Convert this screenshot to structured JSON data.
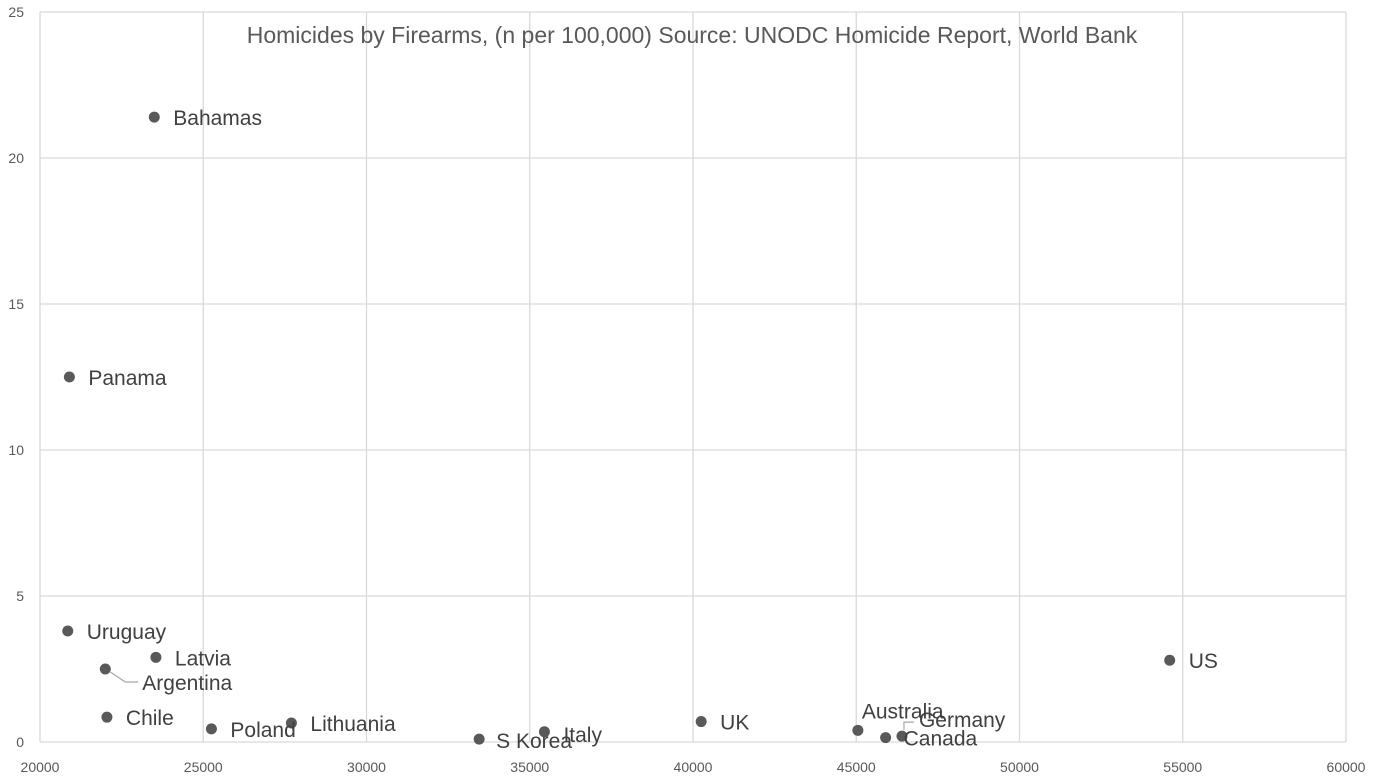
{
  "chart_data": {
    "type": "scatter",
    "title": "Homicides by Firearms, (n per 100,000) Source: UNODC Homicide Report, World Bank",
    "xlabel": "",
    "ylabel": "",
    "xlim": [
      20000,
      60000
    ],
    "ylim": [
      0,
      25
    ],
    "xticks": [
      20000,
      25000,
      30000,
      35000,
      40000,
      45000,
      50000,
      55000,
      60000
    ],
    "yticks": [
      0,
      5,
      10,
      15,
      20,
      25
    ],
    "grid": true,
    "points": [
      {
        "label": "Bahamas",
        "x": 23500,
        "y": 21.4
      },
      {
        "label": "Panama",
        "x": 20900,
        "y": 12.5
      },
      {
        "label": "Uruguay",
        "x": 20850,
        "y": 3.8
      },
      {
        "label": "Latvia",
        "x": 23550,
        "y": 2.9
      },
      {
        "label": "Argentina",
        "x": 22000,
        "y": 2.5
      },
      {
        "label": "Chile",
        "x": 22050,
        "y": 0.85
      },
      {
        "label": "Poland",
        "x": 25250,
        "y": 0.45
      },
      {
        "label": "Lithuania",
        "x": 27700,
        "y": 0.65
      },
      {
        "label": "S Korea",
        "x": 33450,
        "y": 0.1
      },
      {
        "label": "Italy",
        "x": 35450,
        "y": 0.35
      },
      {
        "label": "UK",
        "x": 40250,
        "y": 0.7
      },
      {
        "label": "Australia",
        "x": 45050,
        "y": 0.4
      },
      {
        "label": "Canada",
        "x": 45900,
        "y": 0.15
      },
      {
        "label": "Germany",
        "x": 46400,
        "y": 0.2
      },
      {
        "label": "US",
        "x": 54600,
        "y": 2.8
      }
    ]
  }
}
